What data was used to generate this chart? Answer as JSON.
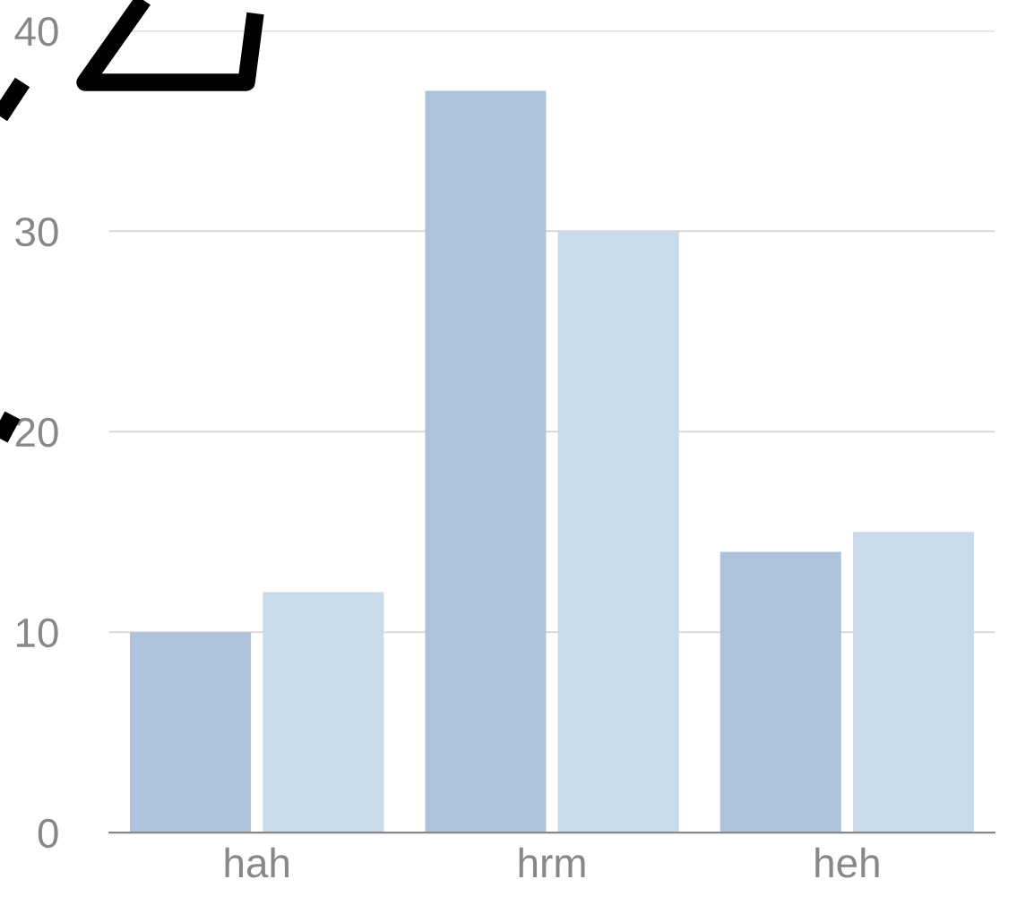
{
  "chart_data": {
    "type": "bar",
    "categories": [
      "hah",
      "hrm",
      "heh"
    ],
    "series": [
      {
        "color": "#aec2dc",
        "values": [
          10,
          37,
          14
        ]
      },
      {
        "color": "#c9dbea",
        "values": [
          12,
          30,
          15
        ]
      }
    ],
    "ylim": [
      0,
      40
    ],
    "yticks": [
      0,
      10,
      20,
      30,
      40
    ],
    "grid": "y"
  }
}
